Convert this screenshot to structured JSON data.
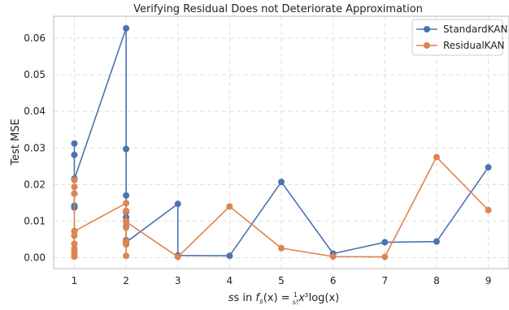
{
  "chart_data": {
    "type": "line",
    "title": "Verifying Residual Does not Deteriorate Approximation",
    "xlabel": {
      "prefix": "s in ",
      "func": "f",
      "sub": "s",
      "mid": "(x) = ",
      "frac_num": "1",
      "frac_den": "s!",
      "tail": "log(x)"
    },
    "ylabel": "Test MSE",
    "xlim": [
      0.6,
      9.4
    ],
    "ylim": [
      -0.003,
      0.066
    ],
    "xticks": [
      "1",
      "2",
      "3",
      "4",
      "5",
      "6",
      "7",
      "8",
      "9"
    ],
    "xtick_values": [
      1,
      2,
      3,
      4,
      5,
      6,
      7,
      8,
      9
    ],
    "yticks": [
      "0.00",
      "0.01",
      "0.02",
      "0.03",
      "0.04",
      "0.05",
      "0.06"
    ],
    "ytick_values": [
      0,
      0.01,
      0.02,
      0.03,
      0.04,
      0.05,
      0.06
    ],
    "grid": true,
    "legend": "top-right",
    "series": [
      {
        "name": "StandardKAN",
        "color": "#4c72b0",
        "points": [
          [
            1,
            0.0312
          ],
          [
            1,
            0.0281
          ],
          [
            1,
            0.0216
          ],
          [
            1,
            0.0175
          ],
          [
            1,
            0.0142
          ],
          [
            1,
            0.0137
          ],
          [
            1,
            0.0214
          ],
          [
            2,
            0.0627
          ],
          [
            2,
            0.0297
          ],
          [
            2,
            0.017
          ],
          [
            2,
            0.0125
          ],
          [
            2,
            0.011
          ],
          [
            2,
            0.0085
          ],
          [
            2,
            0.0048
          ],
          [
            2,
            0.0042
          ],
          [
            2,
            0.0042
          ],
          [
            3,
            0.0147
          ],
          [
            3,
            0.0006
          ],
          [
            4,
            0.0005
          ],
          [
            5,
            0.0207
          ],
          [
            6,
            0.0011
          ],
          [
            7,
            0.0042
          ],
          [
            8,
            0.0044
          ],
          [
            9,
            0.0247
          ]
        ]
      },
      {
        "name": "ResidualKAN",
        "color": "#dd8452",
        "points": [
          [
            1,
            0.0212
          ],
          [
            1,
            0.0193
          ],
          [
            1,
            0.0175
          ],
          [
            1,
            0.0073
          ],
          [
            1,
            0.006
          ],
          [
            1,
            0.0038
          ],
          [
            1,
            0.0025
          ],
          [
            1,
            0.0015
          ],
          [
            1,
            0.0008
          ],
          [
            1,
            0.0003
          ],
          [
            1,
            0.0072
          ],
          [
            2,
            0.0149
          ],
          [
            2,
            0.0128
          ],
          [
            2,
            0.01
          ],
          [
            2,
            0.0082
          ],
          [
            2,
            0.0045
          ],
          [
            2,
            0.0036
          ],
          [
            2,
            0.0005
          ],
          [
            2,
            0.0098
          ],
          [
            3,
            0.0002
          ],
          [
            4,
            0.014
          ],
          [
            5,
            0.0026
          ],
          [
            6,
            0.0003
          ],
          [
            7,
            0.0002
          ],
          [
            8,
            0.0275
          ],
          [
            9,
            0.013
          ]
        ]
      }
    ]
  }
}
